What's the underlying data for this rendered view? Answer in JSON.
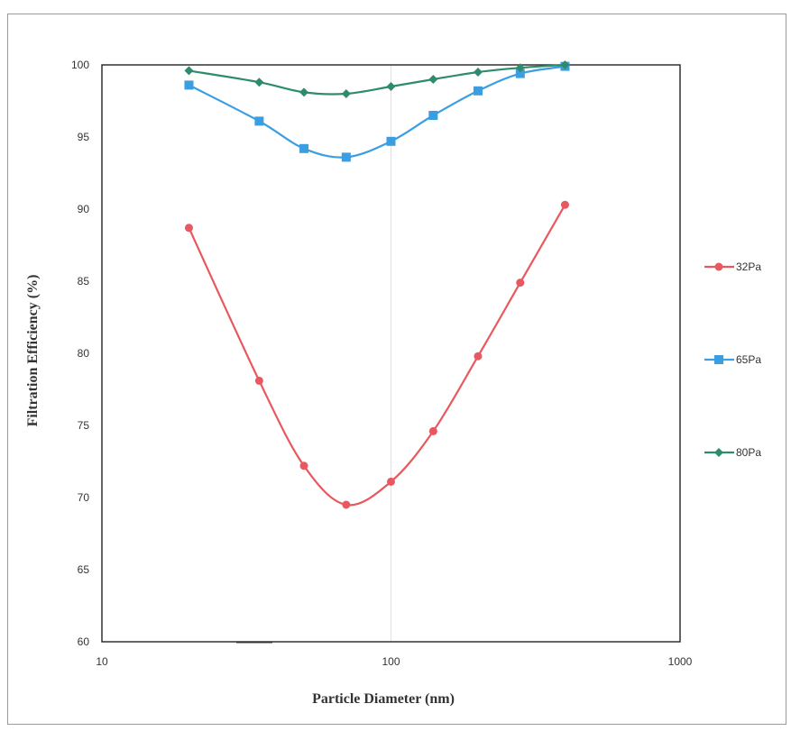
{
  "chart_data": {
    "type": "line",
    "xscale": "log",
    "xlabel": "Particle Diameter  (nm)",
    "ylabel": "Filtration Efficiency (%)",
    "xlim": [
      10,
      1000
    ],
    "ylim": [
      60,
      100
    ],
    "xticks": [
      "10",
      "100",
      "1000"
    ],
    "yticks": [
      "60",
      "65",
      "70",
      "75",
      "80",
      "85",
      "90",
      "95",
      "100"
    ],
    "grid": "vertical decade lines",
    "legend_position": "right",
    "x": [
      20,
      35,
      50,
      70,
      100,
      140,
      200,
      280,
      400
    ],
    "series": [
      {
        "name": "32Pa",
        "color": "#e8585f",
        "marker": "circle",
        "values": [
          88.7,
          78.1,
          72.2,
          69.5,
          71.1,
          74.6,
          79.8,
          84.9,
          90.3
        ]
      },
      {
        "name": "65Pa",
        "color": "#3b9ee0",
        "marker": "square",
        "values": [
          98.6,
          96.1,
          94.2,
          93.6,
          94.7,
          96.5,
          98.2,
          99.4,
          99.9
        ]
      },
      {
        "name": "80Pa",
        "color": "#2e8b6e",
        "marker": "diamond",
        "values": [
          99.6,
          98.8,
          98.1,
          98.0,
          98.5,
          99.0,
          99.5,
          99.8,
          100.0
        ]
      }
    ]
  }
}
